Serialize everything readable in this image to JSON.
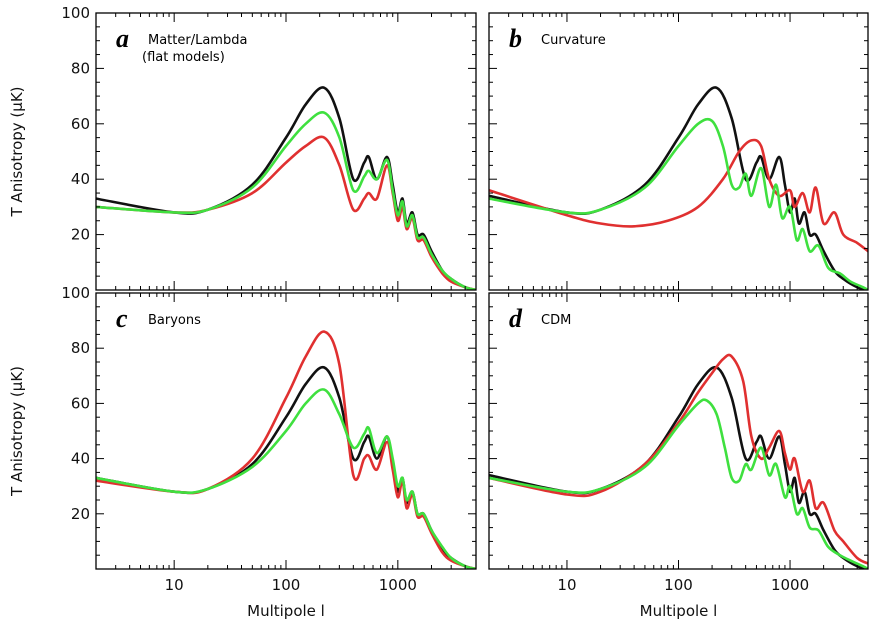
{
  "chart_data": {
    "type": "line",
    "ylabel": "T Anisotropy (μK)",
    "xlabel": "Multipole l",
    "xscale": "log",
    "xlim": [
      2,
      5000
    ],
    "ylim": [
      0,
      100
    ],
    "xticks": [
      10,
      100,
      1000
    ],
    "xtick_labels": [
      "10",
      "100",
      "1000"
    ],
    "yticks": [
      20,
      40,
      60,
      80,
      100
    ],
    "ytick_labels": [
      "20",
      "40",
      "60",
      "80",
      "100"
    ],
    "colors": {
      "black": "#111111",
      "red": "#e03030",
      "green": "#3fe03f"
    },
    "panels": [
      {
        "id": "a",
        "label": "a",
        "title_lines": [
          "Matter/Lambda",
          "(flat models)"
        ],
        "series": [
          {
            "color": "black",
            "x": [
              2,
              10,
              20,
              50,
              100,
              150,
              220,
              300,
              400,
              500,
              550,
              650,
              800,
              900,
              1000,
              1100,
              1200,
              1350,
              1500,
              1700,
              2000,
              2500,
              3000,
              4000,
              5000
            ],
            "y": [
              33,
              28,
              29,
              38,
              55,
              67,
              73,
              62,
              40,
              46,
              48,
              40,
              48,
              38,
              28,
              33,
              24,
              28,
              20,
              20,
              14,
              7,
              4,
              1,
              0
            ]
          },
          {
            "color": "red",
            "x": [
              2,
              10,
              20,
              50,
              100,
              150,
              220,
              300,
              400,
              500,
              550,
              650,
              800,
              900,
              1000,
              1100,
              1200,
              1350,
              1500,
              1700,
              2000,
              2500,
              3000,
              4000,
              5000
            ],
            "y": [
              30,
              28,
              29,
              35,
              46,
              52,
              55,
              45,
              29,
              33,
              35,
              33,
              45,
              35,
              25,
              30,
              22,
              26,
              18,
              18,
              12,
              6,
              3,
              1,
              0
            ]
          },
          {
            "color": "green",
            "x": [
              2,
              10,
              20,
              50,
              100,
              150,
              220,
              300,
              400,
              500,
              550,
              650,
              800,
              900,
              1000,
              1100,
              1200,
              1350,
              1500,
              1700,
              2000,
              2500,
              3000,
              4000,
              5000
            ],
            "y": [
              30,
              28,
              29,
              37,
              52,
              60,
              64,
              55,
              36,
              41,
              43,
              40,
              47,
              36,
              27,
              32,
              23,
              27,
              19,
              19,
              13,
              7,
              4,
              1,
              0
            ]
          }
        ]
      },
      {
        "id": "b",
        "label": "b",
        "title_lines": [
          "Curvature"
        ],
        "series": [
          {
            "color": "black",
            "x": [
              2,
              10,
              20,
              50,
              100,
              150,
              220,
              300,
              400,
              500,
              550,
              650,
              800,
              900,
              1000,
              1100,
              1200,
              1350,
              1500,
              1700,
              2000,
              2500,
              3000,
              4000,
              5000
            ],
            "y": [
              34,
              28,
              29,
              38,
              55,
              67,
              73,
              62,
              40,
              46,
              48,
              40,
              48,
              38,
              28,
              33,
              24,
              28,
              20,
              20,
              14,
              7,
              4,
              1,
              0
            ]
          },
          {
            "color": "red",
            "x": [
              2,
              10,
              20,
              40,
              80,
              150,
              250,
              350,
              450,
              550,
              650,
              800,
              1000,
              1100,
              1300,
              1500,
              1700,
              2000,
              2500,
              3000,
              4000,
              5000
            ],
            "y": [
              36,
              27,
              24,
              23,
              25,
              30,
              40,
              50,
              54,
              52,
              40,
              34,
              36,
              30,
              35,
              28,
              37,
              24,
              28,
              20,
              17,
              14
            ]
          },
          {
            "color": "green",
            "x": [
              2,
              10,
              20,
              50,
              100,
              150,
              200,
              250,
              300,
              350,
              400,
              450,
              550,
              650,
              750,
              850,
              1000,
              1150,
              1300,
              1500,
              1800,
              2200,
              2800,
              3500,
              4500,
              5000
            ],
            "y": [
              33,
              28,
              29,
              37,
              52,
              60,
              61,
              52,
              38,
              37,
              42,
              34,
              44,
              30,
              38,
              26,
              30,
              18,
              22,
              14,
              16,
              8,
              6,
              3,
              1,
              0
            ]
          }
        ]
      },
      {
        "id": "c",
        "label": "c",
        "title_lines": [
          "Baryons"
        ],
        "series": [
          {
            "color": "black",
            "x": [
              2,
              10,
              20,
              50,
              100,
              150,
              220,
              300,
              400,
              500,
              550,
              650,
              800,
              900,
              1000,
              1100,
              1200,
              1350,
              1500,
              1700,
              2000,
              2500,
              3000,
              4000,
              5000
            ],
            "y": [
              33,
              28,
              29,
              38,
              55,
              67,
              73,
              62,
              40,
              46,
              48,
              40,
              48,
              38,
              28,
              33,
              24,
              28,
              20,
              20,
              14,
              7,
              4,
              1,
              0
            ]
          },
          {
            "color": "red",
            "x": [
              2,
              10,
              20,
              50,
              100,
              150,
              220,
              300,
              400,
              500,
              550,
              650,
              800,
              900,
              1000,
              1100,
              1200,
              1350,
              1500,
              1700,
              2000,
              2500,
              3000,
              4000,
              5000
            ],
            "y": [
              32,
              28,
              29,
              40,
              62,
              77,
              86,
              74,
              34,
              40,
              41,
              36,
              46,
              36,
              26,
              32,
              22,
              27,
              19,
              19,
              13,
              6,
              3,
              1,
              0
            ]
          },
          {
            "color": "green",
            "x": [
              2,
              10,
              20,
              50,
              100,
              150,
              220,
              300,
              400,
              500,
              550,
              650,
              800,
              900,
              1000,
              1100,
              1200,
              1350,
              1500,
              1700,
              2000,
              2500,
              3000,
              4000,
              5000
            ],
            "y": [
              33,
              28,
              29,
              37,
              50,
              60,
              65,
              56,
              44,
              49,
              51,
              42,
              48,
              40,
              30,
              33,
              25,
              28,
              20,
              20,
              14,
              8,
              4,
              1,
              0
            ]
          }
        ]
      },
      {
        "id": "d",
        "label": "d",
        "title_lines": [
          "CDM"
        ],
        "series": [
          {
            "color": "black",
            "x": [
              2,
              10,
              20,
              50,
              100,
              150,
              220,
              300,
              400,
              500,
              550,
              650,
              800,
              900,
              1000,
              1100,
              1200,
              1350,
              1500,
              1700,
              2000,
              2500,
              3000,
              4000,
              5000
            ],
            "y": [
              34,
              28,
              29,
              38,
              55,
              67,
              73,
              62,
              40,
              46,
              48,
              40,
              48,
              38,
              28,
              33,
              24,
              28,
              20,
              20,
              14,
              7,
              4,
              1,
              0
            ]
          },
          {
            "color": "red",
            "x": [
              2,
              10,
              20,
              50,
              100,
              150,
              200,
              250,
              300,
              380,
              450,
              550,
              650,
              800,
              900,
              1000,
              1100,
              1300,
              1500,
              1700,
              2000,
              2500,
              3000,
              4000,
              5000
            ],
            "y": [
              33,
              27,
              28,
              38,
              53,
              64,
              71,
              76,
              77,
              68,
              48,
              40,
              44,
              50,
              42,
              36,
              40,
              28,
              32,
              22,
              24,
              14,
              10,
              4,
              2
            ]
          },
          {
            "color": "green",
            "x": [
              2,
              10,
              20,
              50,
              100,
              150,
              180,
              220,
              260,
              300,
              350,
              400,
              450,
              550,
              650,
              750,
              900,
              1000,
              1150,
              1300,
              1500,
              1800,
              2200,
              2800,
              3500,
              4500,
              5000
            ],
            "y": [
              33,
              28,
              29,
              37,
              52,
              60,
              61,
              56,
              44,
              33,
              32,
              38,
              36,
              44,
              34,
              38,
              26,
              30,
              20,
              22,
              15,
              14,
              8,
              5,
              3,
              1,
              0
            ]
          }
        ]
      }
    ]
  }
}
